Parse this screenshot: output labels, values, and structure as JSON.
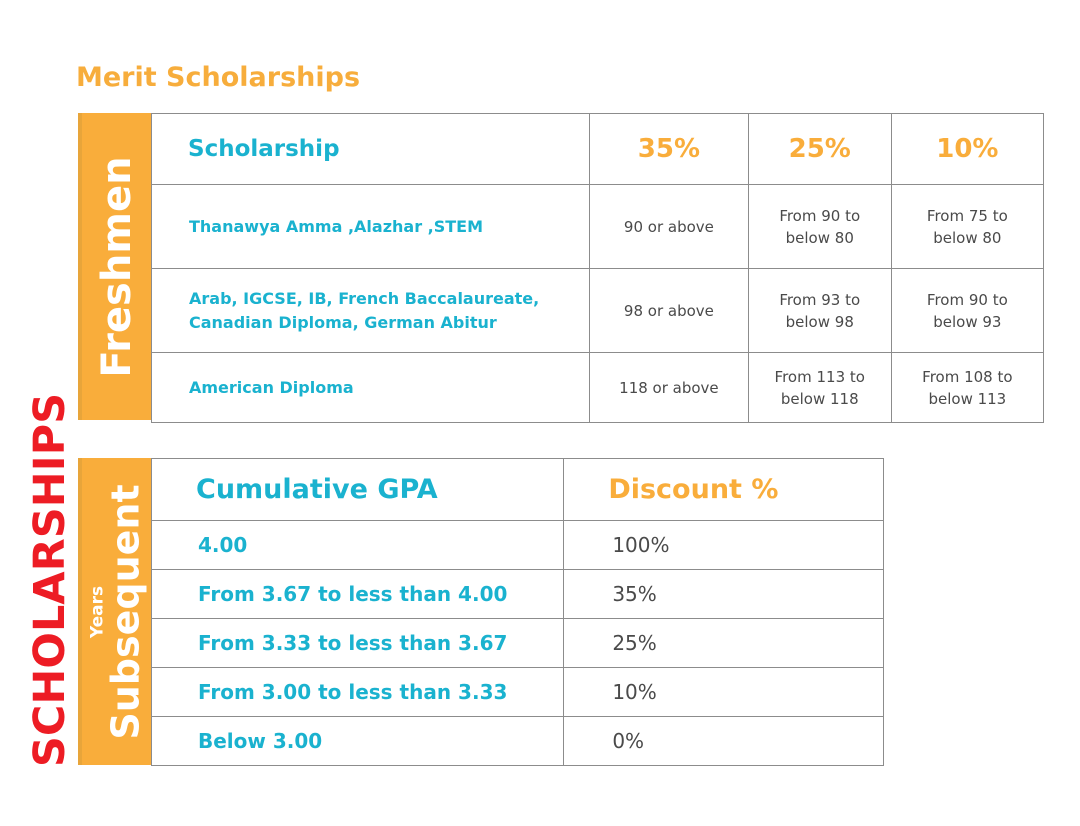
{
  "title": "Merit Scholarships",
  "vertical_label": "SCHOLARSHIPS",
  "freshmen_label": "Freshmen",
  "subsequent_label": "Subsequent",
  "years_label": "Years",
  "freshmen_table": {
    "headers": [
      "Scholarship",
      "35%",
      "25%",
      "10%"
    ],
    "rows": [
      {
        "category": "Thanawya Amma ,Alazhar ,STEM",
        "c35": "90 or above",
        "c25": [
          "From 90 to",
          "below 80"
        ],
        "c10": [
          "From 75 to",
          "below 80"
        ]
      },
      {
        "category": [
          "Arab, IGCSE, IB, French Baccalaureate,",
          "Canadian Diploma, German Abitur"
        ],
        "c35": "98 or above",
        "c25": [
          "From 93 to",
          "below 98"
        ],
        "c10": [
          "From 90 to",
          "below 93"
        ]
      },
      {
        "category": "American Diploma",
        "c35": "118 or above",
        "c25": [
          "From 113 to",
          "below 118"
        ],
        "c10": [
          "From 108 to",
          "below 113"
        ]
      }
    ]
  },
  "gpa_table": {
    "headers": [
      "Cumulative GPA",
      "Discount %"
    ],
    "rows": [
      {
        "gpa": "4.00",
        "discount": "100%"
      },
      {
        "gpa": "From 3.67 to less than 4.00",
        "discount": "35%"
      },
      {
        "gpa": "From 3.33 to less than 3.67",
        "discount": "25%"
      },
      {
        "gpa": "From 3.00 to less than 3.33",
        "discount": "10%"
      },
      {
        "gpa": "Below 3.00",
        "discount": "0%"
      }
    ]
  }
}
